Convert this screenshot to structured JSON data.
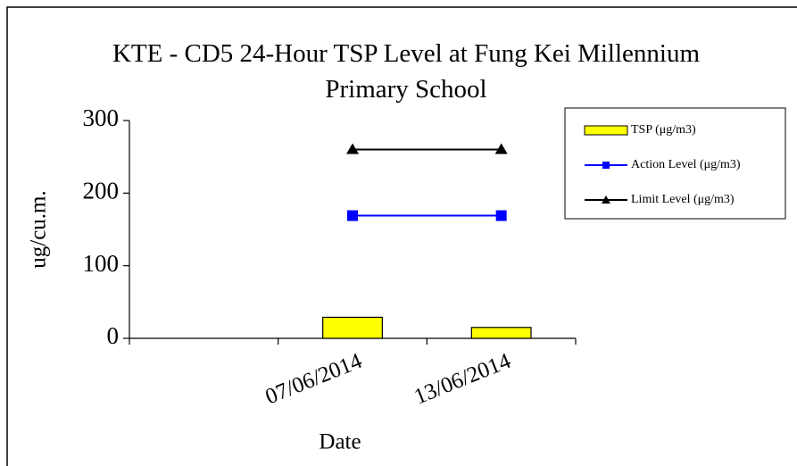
{
  "chart_data": {
    "type": "bar",
    "title": "KTE - CD5 24-Hour TSP Level at Fung Kei Millennium Primary School",
    "x_label": "Date",
    "y_label": "ug/cu.m.",
    "categories": [
      null,
      "07/06/2014",
      "13/06/2014"
    ],
    "series": [
      {
        "name": "TSP (μg/m3)",
        "type": "bar",
        "color": "#ffff00",
        "values": [
          null,
          29,
          15
        ]
      },
      {
        "name": "Action Level (μg/m3)",
        "type": "line",
        "marker": "square",
        "color": "#0000ff",
        "values": [
          null,
          169,
          169
        ]
      },
      {
        "name": "Limit Level (μg/m3)",
        "type": "line",
        "marker": "triangle",
        "color": "#000000",
        "values": [
          null,
          260,
          260
        ]
      }
    ],
    "ylim": [
      0,
      300
    ],
    "yticks": [
      0,
      100,
      200,
      300
    ],
    "grid": false,
    "legend": "right"
  }
}
